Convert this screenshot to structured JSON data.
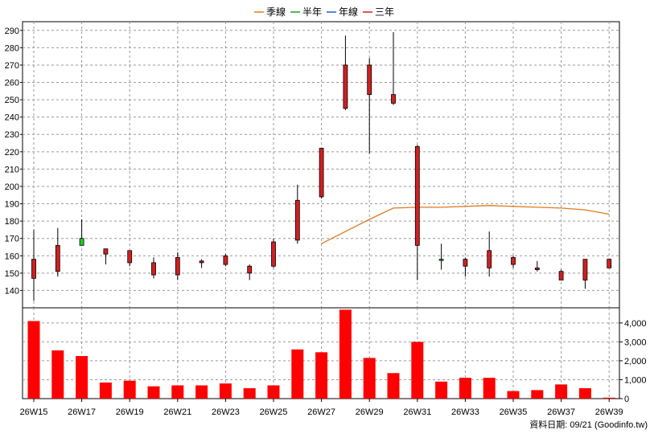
{
  "legend": [
    {
      "label": "季線",
      "color": "#e07a1f"
    },
    {
      "label": "半年",
      "color": "#1aa31a"
    },
    {
      "label": "年線",
      "color": "#1f5fd6"
    },
    {
      "label": "三年",
      "color": "#d61f1f"
    }
  ],
  "footer": "資料日期: 09/21  (Goodinfo.tw)",
  "chart_data": [
    {
      "type": "candlestick",
      "x": [
        "26W15",
        "26W16",
        "26W17",
        "26W18",
        "26W19",
        "26W20",
        "26W21",
        "26W22",
        "26W23",
        "26W24",
        "26W25",
        "26W26",
        "26W27",
        "26W28",
        "26W29",
        "26W30",
        "26W31",
        "26W32",
        "26W33",
        "26W34",
        "26W35",
        "26W36",
        "26W37",
        "26W38",
        "26W39"
      ],
      "x_tick_labels": [
        "26W15",
        "26W17",
        "26W19",
        "26W21",
        "26W23",
        "26W25",
        "26W27",
        "26W29",
        "26W31",
        "26W33",
        "26W35",
        "26W37",
        "26W39"
      ],
      "ylim": [
        130,
        295
      ],
      "y_ticks": [
        140,
        150,
        160,
        170,
        180,
        190,
        200,
        210,
        220,
        230,
        240,
        250,
        260,
        270,
        280,
        290
      ],
      "grid": true,
      "up_color": "#1fd01f",
      "down_color": "#d41f1f",
      "ohlc": [
        {
          "o": 158,
          "h": 175,
          "l": 134,
          "c": 147
        },
        {
          "o": 166,
          "h": 176,
          "l": 148,
          "c": 151
        },
        {
          "o": 166,
          "h": 181,
          "l": 166,
          "c": 170
        },
        {
          "o": 164,
          "h": 164,
          "l": 155,
          "c": 161
        },
        {
          "o": 163,
          "h": 163,
          "l": 154,
          "c": 156
        },
        {
          "o": 156,
          "h": 159,
          "l": 147,
          "c": 149
        },
        {
          "o": 159,
          "h": 162,
          "l": 146,
          "c": 149
        },
        {
          "o": 157,
          "h": 158,
          "l": 153,
          "c": 156
        },
        {
          "o": 160,
          "h": 161,
          "l": 154,
          "c": 155
        },
        {
          "o": 154,
          "h": 155,
          "l": 146,
          "c": 150
        },
        {
          "o": 168,
          "h": 170,
          "l": 153,
          "c": 154
        },
        {
          "o": 192,
          "h": 201,
          "l": 167,
          "c": 169
        },
        {
          "o": 222,
          "h": 222,
          "l": 193,
          "c": 194
        },
        {
          "o": 270,
          "h": 287,
          "l": 244,
          "c": 245
        },
        {
          "o": 270,
          "h": 274,
          "l": 219,
          "c": 253
        },
        {
          "o": 253,
          "h": 289,
          "l": 247,
          "c": 248
        },
        {
          "o": 223,
          "h": 224,
          "l": 146,
          "c": 166
        },
        {
          "o": 158,
          "h": 167,
          "l": 152,
          "c": 158
        },
        {
          "o": 158,
          "h": 159,
          "l": 148,
          "c": 154
        },
        {
          "o": 163,
          "h": 174,
          "l": 148,
          "c": 153
        },
        {
          "o": 159,
          "h": 160,
          "l": 153,
          "c": 155
        },
        {
          "o": 153,
          "h": 157,
          "l": 151,
          "c": 152
        },
        {
          "o": 151,
          "h": 152,
          "l": 146,
          "c": 146
        },
        {
          "o": 158,
          "h": 158,
          "l": 141,
          "c": 146
        },
        {
          "o": 158,
          "h": 158,
          "l": 153,
          "c": 153
        }
      ],
      "series": [
        {
          "name": "季線",
          "color": "#e07a1f",
          "values": [
            null,
            null,
            null,
            null,
            null,
            null,
            null,
            null,
            null,
            null,
            null,
            null,
            167,
            174,
            181,
            187.5,
            188,
            188,
            188.5,
            189,
            188.5,
            188,
            187.5,
            186.5,
            184
          ]
        }
      ]
    },
    {
      "type": "bar",
      "x": [
        "26W15",
        "26W16",
        "26W17",
        "26W18",
        "26W19",
        "26W20",
        "26W21",
        "26W22",
        "26W23",
        "26W24",
        "26W25",
        "26W26",
        "26W27",
        "26W28",
        "26W29",
        "26W30",
        "26W31",
        "26W32",
        "26W33",
        "26W34",
        "26W35",
        "26W36",
        "26W37",
        "26W38",
        "26W39"
      ],
      "values": [
        4100,
        2550,
        2250,
        850,
        950,
        650,
        700,
        700,
        800,
        550,
        700,
        2600,
        2450,
        4700,
        2150,
        1350,
        3000,
        900,
        1100,
        1100,
        400,
        450,
        750,
        550,
        50
      ],
      "ylim": [
        0,
        4800
      ],
      "y_ticks": [
        0,
        1000,
        2000,
        3000,
        4000
      ],
      "y_tick_labels": [
        "0",
        "1,000",
        "2,000",
        "3,000",
        "4,000"
      ],
      "color": "#ff0000",
      "grid": true
    }
  ]
}
